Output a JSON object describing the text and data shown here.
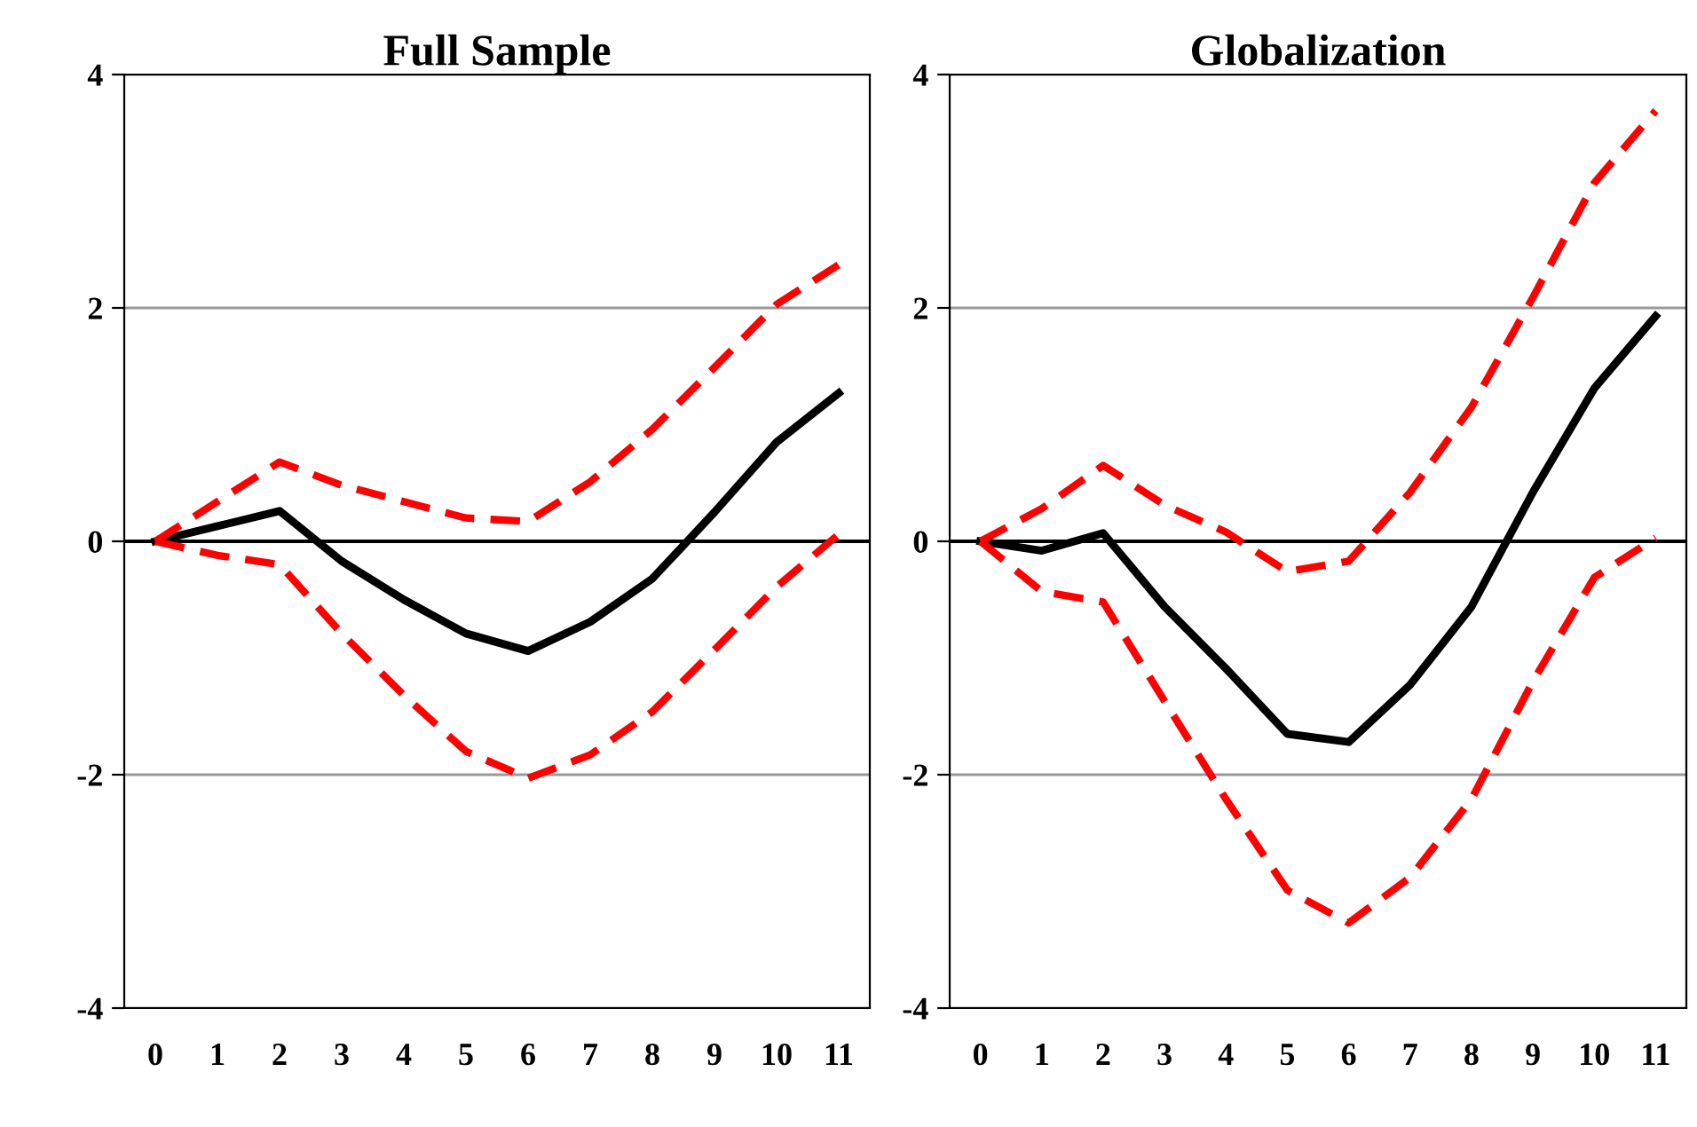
{
  "chart_data": [
    {
      "type": "line",
      "title": "Full Sample",
      "categories": [
        "0",
        "1",
        "2",
        "3",
        "4",
        "5",
        "6",
        "7",
        "8",
        "9",
        "10",
        "11"
      ],
      "ylim": [
        -4,
        4
      ],
      "yticks": [
        -4,
        -2,
        0,
        2,
        4
      ],
      "grid": "y",
      "legend": false,
      "ref_lines": [
        {
          "axis": "y",
          "value": 0,
          "color": "#000000"
        }
      ],
      "series": [
        {
          "color": "#000000",
          "line_style": "solid",
          "values": [
            0,
            0.13,
            0.26,
            -0.17,
            -0.5,
            -0.79,
            -0.94,
            -0.69,
            -0.32,
            0.25,
            0.85,
            1.27
          ]
        },
        {
          "color": "#ff0000",
          "line_style": "dashed",
          "values": [
            0,
            0.34,
            0.68,
            0.48,
            0.34,
            0.2,
            0.17,
            0.51,
            0.96,
            1.49,
            2.03,
            2.37
          ]
        },
        {
          "color": "#ff0000",
          "line_style": "dashed",
          "values": [
            0,
            -0.12,
            -0.2,
            -0.79,
            -1.32,
            -1.8,
            -2.03,
            -1.83,
            -1.46,
            -0.93,
            -0.39,
            0.06
          ]
        }
      ]
    },
    {
      "type": "line",
      "title": "Globalization",
      "categories": [
        "0",
        "1",
        "2",
        "3",
        "4",
        "5",
        "6",
        "7",
        "8",
        "9",
        "10",
        "11"
      ],
      "ylim": [
        -4,
        4
      ],
      "yticks": [
        -4,
        -2,
        0,
        2,
        4
      ],
      "grid": "y",
      "legend": false,
      "ref_lines": [
        {
          "axis": "y",
          "value": 0,
          "color": "#000000"
        }
      ],
      "series": [
        {
          "color": "#000000",
          "line_style": "solid",
          "values": [
            0,
            -0.08,
            0.07,
            -0.56,
            -1.09,
            -1.65,
            -1.72,
            -1.23,
            -0.56,
            0.42,
            1.31,
            1.93
          ]
        },
        {
          "color": "#ff0000",
          "line_style": "dashed",
          "values": [
            0,
            0.28,
            0.65,
            0.31,
            0.08,
            -0.26,
            -0.17,
            0.42,
            1.15,
            2.09,
            3.07,
            3.69
          ]
        },
        {
          "color": "#ff0000",
          "line_style": "dashed",
          "values": [
            0,
            -0.43,
            -0.52,
            -1.37,
            -2.21,
            -2.99,
            -3.27,
            -2.88,
            -2.21,
            -1.2,
            -0.31,
            0.03
          ]
        }
      ]
    }
  ]
}
